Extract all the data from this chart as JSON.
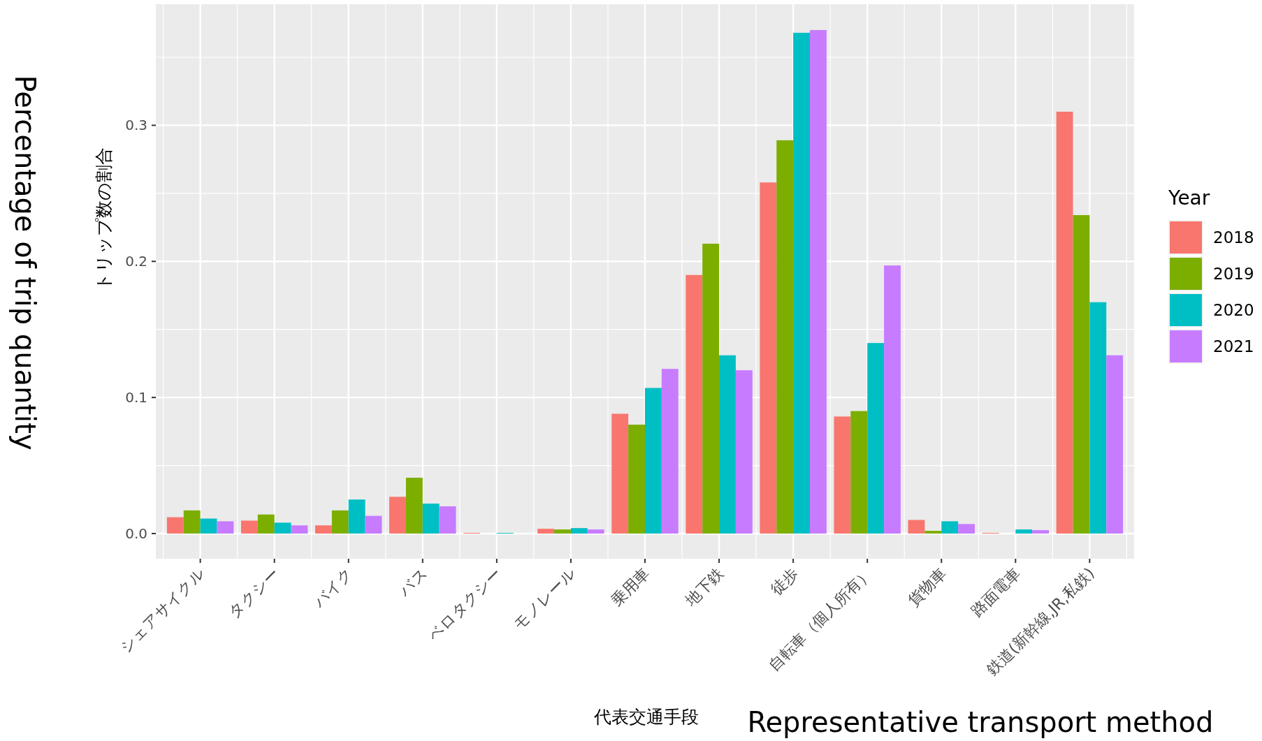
{
  "chart_data": {
    "type": "bar",
    "xlabel": "代表交通手段",
    "ylabel": "トリップ数の割合",
    "legend_title": "Year",
    "categories": [
      "シェアサイクル",
      "タクシー",
      "バイク",
      "バス",
      "ベロタクシー",
      "モノレール",
      "乗用車",
      "地下鉄",
      "徒歩",
      "自転車（個人所有）",
      "貨物車",
      "路面電車",
      "鉄道(新幹線,JR,私鉄)"
    ],
    "series": [
      {
        "name": "2018",
        "color": "#f8766d",
        "values": [
          0.012,
          0.0095,
          0.006,
          0.027,
          0.0005,
          0.0035,
          0.088,
          0.19,
          0.258,
          0.086,
          0.01,
          0.0005,
          0.31
        ]
      },
      {
        "name": "2019",
        "color": "#7cae00",
        "values": [
          0.017,
          0.014,
          0.017,
          0.041,
          0,
          0.003,
          0.08,
          0.213,
          0.289,
          0.09,
          0.002,
          null,
          0.234
        ]
      },
      {
        "name": "2020",
        "color": "#00bfc4",
        "values": [
          0.011,
          0.008,
          0.025,
          0.022,
          0.0005,
          0.004,
          0.107,
          0.131,
          0.368,
          0.14,
          0.009,
          0.003,
          0.17
        ]
      },
      {
        "name": "2021",
        "color": "#c77cff",
        "values": [
          0.009,
          0.006,
          0.013,
          0.02,
          0,
          0.003,
          0.121,
          0.12,
          0.37,
          0.197,
          0.007,
          0.0025,
          0.131
        ]
      }
    ],
    "ylim": [
      -0.0185,
      0.389
    ],
    "yticks": [
      {
        "value": 0,
        "label": "0.0"
      },
      {
        "value": 0.1,
        "label": "0.1"
      },
      {
        "value": 0.2,
        "label": "0.2"
      },
      {
        "value": 0.3,
        "label": "0.3"
      }
    ],
    "grid": true,
    "legend": "right",
    "annotations": [
      "Percentage of trip quantity",
      "Representative transport method"
    ]
  }
}
